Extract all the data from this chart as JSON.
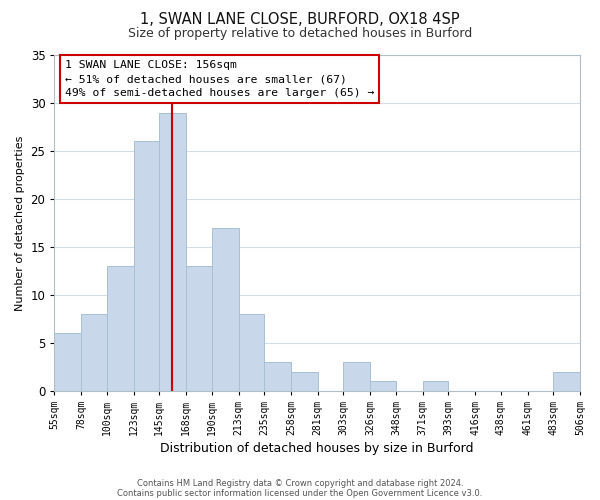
{
  "title_line1": "1, SWAN LANE CLOSE, BURFORD, OX18 4SP",
  "title_line2": "Size of property relative to detached houses in Burford",
  "xlabel": "Distribution of detached houses by size in Burford",
  "ylabel": "Number of detached properties",
  "bar_color": "#c8d8ea",
  "bar_edge_color": "#a8c0d4",
  "vline_x": 156,
  "vline_color": "#cc0000",
  "bin_edges": [
    55,
    78,
    100,
    123,
    145,
    168,
    190,
    213,
    235,
    258,
    281,
    303,
    326,
    348,
    371,
    393,
    416,
    438,
    461,
    483,
    506
  ],
  "bar_heights": [
    6,
    8,
    13,
    26,
    29,
    13,
    17,
    8,
    3,
    2,
    0,
    3,
    1,
    0,
    1,
    0,
    0,
    0,
    0,
    2
  ],
  "tick_labels": [
    "55sqm",
    "78sqm",
    "100sqm",
    "123sqm",
    "145sqm",
    "168sqm",
    "190sqm",
    "213sqm",
    "235sqm",
    "258sqm",
    "281sqm",
    "303sqm",
    "326sqm",
    "348sqm",
    "371sqm",
    "393sqm",
    "416sqm",
    "438sqm",
    "461sqm",
    "483sqm",
    "506sqm"
  ],
  "ylim": [
    0,
    35
  ],
  "yticks": [
    0,
    5,
    10,
    15,
    20,
    25,
    30,
    35
  ],
  "annotation_line1": "1 SWAN LANE CLOSE: 156sqm",
  "annotation_line2": "← 51% of detached houses are smaller (67)",
  "annotation_line3": "49% of semi-detached houses are larger (65) →",
  "footnote1": "Contains HM Land Registry data © Crown copyright and database right 2024.",
  "footnote2": "Contains public sector information licensed under the Open Government Licence v3.0.",
  "background_color": "#ffffff",
  "grid_color": "#d4dde6",
  "box_edge_color": "#cc0000"
}
